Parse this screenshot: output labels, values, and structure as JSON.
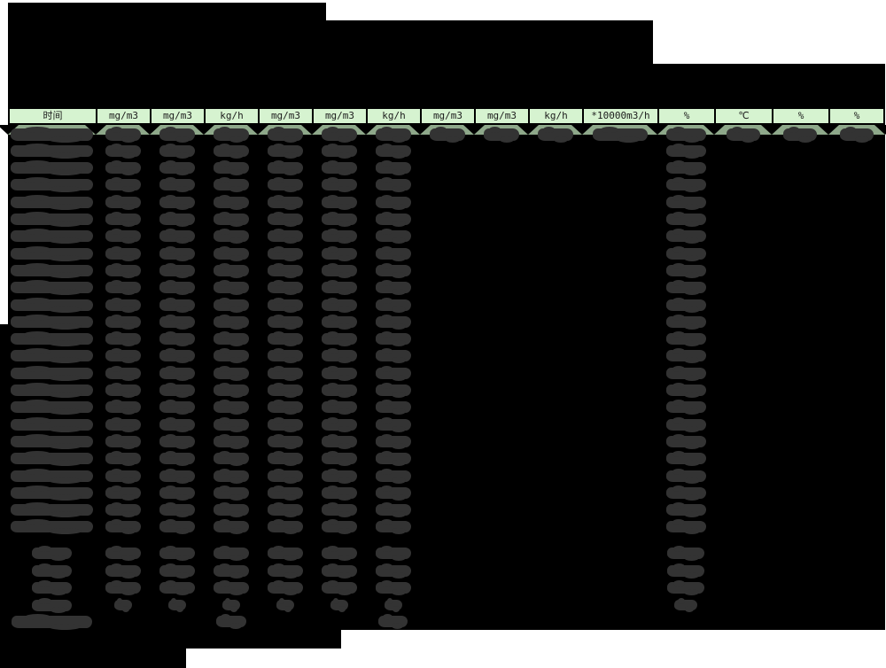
{
  "page": {
    "background": "#ffffff",
    "description_visible_text_only": true
  },
  "table": {
    "header": {
      "bg": "#d6f3d0",
      "text_color": "#1c1c1c",
      "border_color": "#000000",
      "columns": [
        {
          "label": "时间"
        },
        {
          "label": "mg/m3"
        },
        {
          "label": "mg/m3"
        },
        {
          "label": "kg/h"
        },
        {
          "label": "mg/m3"
        },
        {
          "label": "mg/m3"
        },
        {
          "label": "kg/h"
        },
        {
          "label": "mg/m3"
        },
        {
          "label": "mg/m3"
        },
        {
          "label": "kg/h"
        },
        {
          "label": "*10000m3/h"
        },
        {
          "label": "%"
        },
        {
          "label": "℃"
        },
        {
          "label": "%"
        },
        {
          "label": "%"
        }
      ]
    },
    "body": {
      "data_row_count": 24,
      "first_row_all_columns_redacted": true,
      "columns_redacted_every_row": [
        1,
        2,
        3,
        4,
        5,
        6,
        7,
        12
      ],
      "columns_redacted_first_row_only": [
        8,
        9,
        10,
        11,
        13,
        14,
        15
      ],
      "summary_row_count": 4,
      "summary_columns_redacted": [
        1,
        2,
        3,
        4,
        5,
        6,
        7,
        12
      ],
      "footer_row_columns_redacted": [
        1,
        4,
        7
      ]
    },
    "colors": {
      "redaction_black": "#000000",
      "scribble_gray": "#333333",
      "first_row_band": "#8ea88a"
    }
  }
}
